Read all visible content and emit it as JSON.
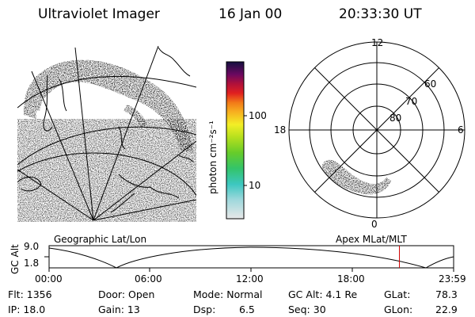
{
  "header": {
    "title": "Ultraviolet Imager",
    "date": "16 Jan 00",
    "time": "20:33:30 UT"
  },
  "colorbar": {
    "unit_label": "photon cm⁻²s⁻¹",
    "ticks": [
      "100",
      "10"
    ]
  },
  "polar": {
    "mlt_labels": [
      "12",
      "18",
      "6",
      "0"
    ],
    "lat_labels": [
      "60",
      "70",
      "80"
    ]
  },
  "map_labels": {
    "left": "Geographic Lat/Lon",
    "right": "Apex MLat/MLT"
  },
  "altitude_plot": {
    "ylabel": "GC Alt",
    "y_ticks": [
      "9.0",
      "1.8"
    ],
    "x_ticks": [
      "00:00",
      "06:00",
      "12:00",
      "18:00",
      "23:59"
    ],
    "current_time_fraction": 0.866,
    "marker_color": "#d00000"
  },
  "footer": {
    "flt": "Flt: 1356",
    "ip": "IP: 18.0",
    "door": "Door: Open",
    "gain": "Gain: 13",
    "mode": "Mode: Normal",
    "dsp_label": "Dsp:",
    "dsp_value": "6.5",
    "gc_alt": "GC Alt: 4.1 Re",
    "seq": "Seq: 30",
    "glat_label": "GLat:",
    "glat_value": "78.3",
    "glon_label": "GLon:",
    "glon_value": "22.9"
  }
}
